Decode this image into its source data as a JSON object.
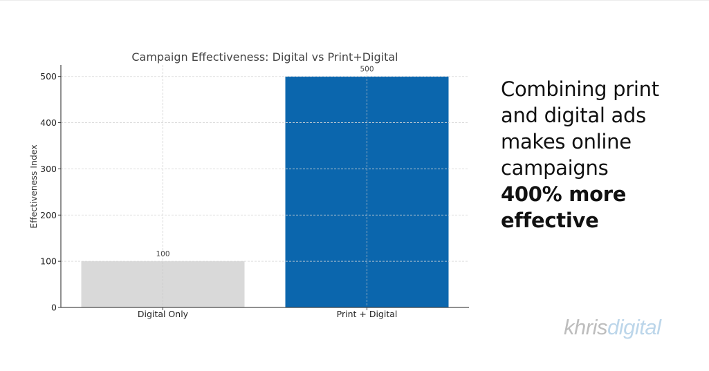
{
  "chart_data": {
    "type": "bar",
    "title": "Campaign Effectiveness: Digital vs Print+Digital",
    "ylabel": "Effectiveness Index",
    "xlabel": "",
    "categories": [
      "Digital Only",
      "Print + Digital"
    ],
    "values": [
      100,
      500
    ],
    "data_labels": [
      "100",
      "500"
    ],
    "bar_colors": [
      "#d9d9d9",
      "#0b66ad"
    ],
    "ylim": [
      0,
      525
    ],
    "yticks": [
      0,
      100,
      200,
      300,
      400,
      500
    ],
    "grid": true
  },
  "caption": {
    "lines": [
      "Combining print",
      "and digital ads",
      "makes online",
      "campaigns"
    ],
    "emphasis": [
      "400% more",
      "effective"
    ]
  },
  "logo": {
    "part1": "khris",
    "part2": "digital"
  }
}
